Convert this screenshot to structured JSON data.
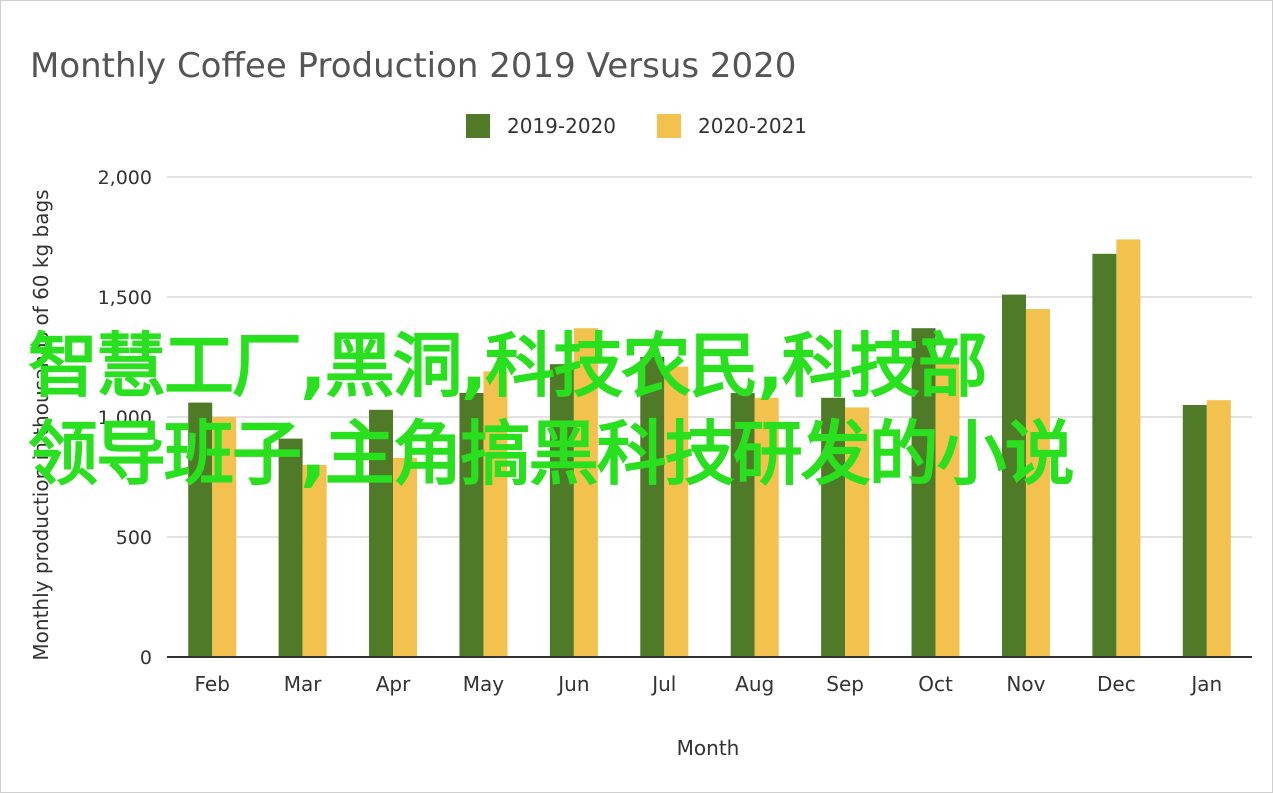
{
  "chart_data": {
    "type": "bar",
    "title": "Monthly Coffee Production 2019 Versus 2020",
    "xlabel": "Month",
    "ylabel": "Monthly production in thousands of 60 kg bags",
    "ylim": [
      0,
      2000
    ],
    "yticks": [
      0,
      500,
      1000,
      1500,
      2000
    ],
    "ytick_labels": [
      "0",
      "500",
      "1,000",
      "1,500",
      "2,000"
    ],
    "grid": true,
    "legend_position": "top",
    "categories": [
      "Feb",
      "Mar",
      "Apr",
      "May",
      "Jun",
      "Jul",
      "Aug",
      "Sep",
      "Oct",
      "Nov",
      "Dec",
      "Jan"
    ],
    "series": [
      {
        "name": "2019-2020",
        "color": "#4f7a28",
        "values": [
          1060,
          910,
          1030,
          1100,
          1220,
          1250,
          1100,
          1080,
          1370,
          1510,
          1680,
          1050
        ]
      },
      {
        "name": "2020-2021",
        "color": "#f2c14e",
        "values": [
          1000,
          800,
          830,
          1190,
          1370,
          1210,
          1080,
          1040,
          1230,
          1450,
          1740,
          1070
        ]
      }
    ]
  },
  "overlay": {
    "line1": "智慧工厂,黑洞,科技农民,科技部",
    "line2": "领导班子,主角搞黑科技研发的小说",
    "color": "#29e01f"
  }
}
